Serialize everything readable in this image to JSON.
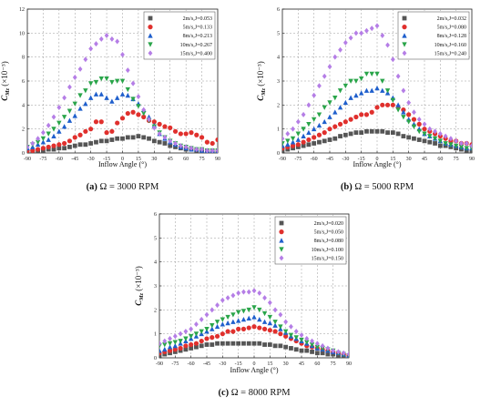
{
  "chart_data": [
    {
      "type": "scatter",
      "caption_letter": "(a)",
      "caption_text": "Ω = 3000 RPM",
      "xlabel": "Inflow Angle (°)",
      "ylabel": "C_Mz (×10⁻³)",
      "xlim": [
        -90,
        90
      ],
      "ylim": [
        0,
        12
      ],
      "xticks": [
        -90,
        -75,
        -60,
        -45,
        -30,
        -15,
        0,
        15,
        30,
        45,
        60,
        75,
        90
      ],
      "yticks": [
        0,
        2,
        4,
        6,
        8,
        10,
        12
      ],
      "grid": true,
      "legend": "top-right",
      "x": [
        -90,
        -85,
        -80,
        -75,
        -70,
        -65,
        -60,
        -55,
        -50,
        -45,
        -40,
        -35,
        -30,
        -25,
        -20,
        -15,
        -10,
        -5,
        0,
        5,
        10,
        15,
        20,
        25,
        30,
        35,
        40,
        45,
        50,
        55,
        60,
        65,
        70,
        75,
        80,
        85,
        90
      ],
      "series": [
        {
          "name": "2m/s,J=0.053",
          "marker": "square",
          "color": "#555555",
          "values": [
            0.1,
            0.1,
            0.2,
            0.2,
            0.3,
            0.3,
            0.4,
            0.4,
            0.5,
            0.6,
            0.7,
            0.7,
            0.8,
            0.9,
            1.0,
            1.0,
            1.1,
            1.2,
            1.2,
            1.3,
            1.3,
            1.4,
            1.3,
            1.2,
            1.0,
            0.9,
            0.8,
            0.6,
            0.5,
            0.4,
            0.3,
            0.3,
            0.2,
            0.2,
            0.1,
            0.1,
            0.1
          ]
        },
        {
          "name": "5m/s,J=0.133",
          "marker": "circle",
          "color": "#e0302d",
          "values": [
            0.2,
            0.2,
            0.3,
            0.4,
            0.5,
            0.6,
            0.7,
            0.8,
            1.0,
            1.3,
            1.5,
            1.8,
            2.0,
            2.6,
            2.6,
            1.7,
            1.8,
            2.5,
            2.9,
            3.3,
            3.4,
            3.2,
            3.0,
            2.7,
            2.6,
            2.4,
            2.2,
            2.1,
            1.8,
            1.6,
            1.6,
            1.7,
            1.5,
            1.3,
            0.9,
            0.8,
            1.1
          ]
        },
        {
          "name": "8m/s,J=0.213",
          "marker": "triangle-up",
          "color": "#1f5fcc",
          "values": [
            0.4,
            0.5,
            0.7,
            0.9,
            1.1,
            1.4,
            1.8,
            2.2,
            2.7,
            3.1,
            3.7,
            4.1,
            4.6,
            4.9,
            4.9,
            4.6,
            4.3,
            4.6,
            4.9,
            4.8,
            4.5,
            4.1,
            3.6,
            3.0,
            2.3,
            1.6,
            1.2,
            0.9,
            0.7,
            0.5,
            0.4,
            0.3,
            0.3,
            0.2,
            0.2,
            0.2,
            0.1
          ]
        },
        {
          "name": "10m/s,J=0.267",
          "marker": "triangle-down",
          "color": "#2aa54a",
          "values": [
            0.5,
            0.7,
            0.9,
            1.2,
            1.6,
            2.0,
            2.5,
            3.0,
            3.5,
            4.1,
            4.8,
            5.2,
            5.8,
            5.9,
            6.2,
            6.2,
            5.9,
            6.0,
            6.0,
            5.3,
            4.5,
            3.9,
            3.3,
            2.7,
            2.2,
            1.7,
            1.3,
            1.0,
            0.8,
            0.6,
            0.5,
            0.4,
            0.3,
            0.3,
            0.2,
            0.2,
            0.2
          ]
        },
        {
          "name": "15m/s,J=0.400",
          "marker": "diamond",
          "color": "#b57ee6",
          "values": [
            0.5,
            0.8,
            1.2,
            1.7,
            2.3,
            3.0,
            3.8,
            4.6,
            5.5,
            6.3,
            7.0,
            7.8,
            8.7,
            9.1,
            9.5,
            9.8,
            9.5,
            9.3,
            8.2,
            6.9,
            5.8,
            4.7,
            3.6,
            2.8,
            2.1,
            1.6,
            1.3,
            1.0,
            0.8,
            0.6,
            0.5,
            0.4,
            0.3,
            0.3,
            0.2,
            0.2,
            0.2
          ]
        }
      ]
    },
    {
      "type": "scatter",
      "caption_letter": "(b)",
      "caption_text": "Ω = 5000 RPM",
      "xlabel": "Inflow Angle (°)",
      "ylabel": "C_Mz (×10⁻³)",
      "xlim": [
        -90,
        90
      ],
      "ylim": [
        0,
        6
      ],
      "xticks": [
        -90,
        -75,
        -60,
        -45,
        -30,
        -15,
        0,
        15,
        30,
        45,
        60,
        75,
        90
      ],
      "yticks": [
        0,
        1,
        2,
        3,
        4,
        5,
        6
      ],
      "grid": true,
      "legend": "top-right",
      "x": [
        -90,
        -85,
        -80,
        -75,
        -70,
        -65,
        -60,
        -55,
        -50,
        -45,
        -40,
        -35,
        -30,
        -25,
        -20,
        -15,
        -10,
        -5,
        0,
        5,
        10,
        15,
        20,
        25,
        30,
        35,
        40,
        45,
        50,
        55,
        60,
        65,
        70,
        75,
        80,
        85,
        90
      ],
      "series": [
        {
          "name": "2m/s,J=0.032",
          "marker": "square",
          "color": "#555555",
          "values": [
            0.1,
            0.15,
            0.2,
            0.25,
            0.3,
            0.35,
            0.4,
            0.45,
            0.5,
            0.55,
            0.6,
            0.7,
            0.75,
            0.8,
            0.85,
            0.85,
            0.9,
            0.9,
            0.9,
            0.9,
            0.85,
            0.85,
            0.8,
            0.7,
            0.65,
            0.6,
            0.55,
            0.5,
            0.45,
            0.4,
            0.3,
            0.3,
            0.25,
            0.2,
            0.15,
            0.1,
            0.05
          ]
        },
        {
          "name": "5m/s,J=0.080",
          "marker": "circle",
          "color": "#e0302d",
          "values": [
            0.2,
            0.25,
            0.3,
            0.35,
            0.45,
            0.55,
            0.65,
            0.75,
            0.85,
            1.0,
            1.1,
            1.2,
            1.3,
            1.4,
            1.5,
            1.6,
            1.6,
            1.7,
            1.9,
            2.0,
            2.0,
            2.0,
            1.9,
            1.8,
            1.6,
            1.4,
            1.2,
            1.0,
            0.9,
            0.8,
            0.7,
            0.6,
            0.5,
            0.5,
            0.4,
            0.4,
            0.35
          ]
        },
        {
          "name": "8m/s,J=0.128",
          "marker": "triangle-up",
          "color": "#1f5fcc",
          "values": [
            0.3,
            0.35,
            0.45,
            0.55,
            0.7,
            0.85,
            1.0,
            1.15,
            1.3,
            1.5,
            1.7,
            1.9,
            2.1,
            2.3,
            2.4,
            2.5,
            2.6,
            2.6,
            2.7,
            2.6,
            2.5,
            2.3,
            2.0,
            1.7,
            1.4,
            1.2,
            1.0,
            0.8,
            0.7,
            0.6,
            0.5,
            0.4,
            0.35,
            0.3,
            0.25,
            0.2,
            0.2
          ]
        },
        {
          "name": "10m/s,J=0.160",
          "marker": "triangle-down",
          "color": "#2aa54a",
          "values": [
            0.4,
            0.5,
            0.6,
            0.8,
            1.0,
            1.2,
            1.4,
            1.6,
            1.9,
            2.1,
            2.3,
            2.6,
            2.8,
            3.0,
            3.0,
            3.1,
            3.3,
            3.3,
            3.3,
            3.0,
            2.6,
            2.2,
            1.8,
            1.5,
            1.3,
            1.1,
            0.9,
            0.8,
            0.7,
            0.6,
            0.5,
            0.4,
            0.35,
            0.3,
            0.25,
            0.2,
            0.2
          ]
        },
        {
          "name": "15m/s,J=0.240",
          "marker": "diamond",
          "color": "#b57ee6",
          "values": [
            0.6,
            0.8,
            1.0,
            1.3,
            1.6,
            2.0,
            2.4,
            2.8,
            3.2,
            3.6,
            4.0,
            4.3,
            4.6,
            4.8,
            5.0,
            5.0,
            5.1,
            5.2,
            5.3,
            4.9,
            4.5,
            3.9,
            3.2,
            2.6,
            2.1,
            1.7,
            1.4,
            1.2,
            1.0,
            0.9,
            0.8,
            0.7,
            0.6,
            0.5,
            0.4,
            0.4,
            0.3
          ]
        }
      ]
    },
    {
      "type": "scatter",
      "caption_letter": "(c)",
      "caption_text": "Ω = 8000 RPM",
      "xlabel": "Inflow Angle (°)",
      "ylabel": "C_Mz (×10⁻³)",
      "xlim": [
        -90,
        90
      ],
      "ylim": [
        0,
        6
      ],
      "xticks": [
        -90,
        -75,
        -60,
        -45,
        -30,
        -15,
        0,
        15,
        30,
        45,
        60,
        75,
        90
      ],
      "yticks": [
        0,
        1,
        2,
        3,
        4,
        5,
        6
      ],
      "grid": true,
      "legend": "top-right",
      "x": [
        -90,
        -85,
        -80,
        -75,
        -70,
        -65,
        -60,
        -55,
        -50,
        -45,
        -40,
        -35,
        -30,
        -25,
        -20,
        -15,
        -10,
        -5,
        0,
        5,
        10,
        15,
        20,
        25,
        30,
        35,
        40,
        45,
        50,
        55,
        60,
        65,
        70,
        75,
        80,
        85,
        90
      ],
      "series": [
        {
          "name": "2m/s,J=0.020",
          "marker": "square",
          "color": "#555555",
          "values": [
            0.1,
            0.15,
            0.2,
            0.25,
            0.3,
            0.35,
            0.4,
            0.45,
            0.5,
            0.55,
            0.55,
            0.6,
            0.6,
            0.6,
            0.6,
            0.6,
            0.6,
            0.6,
            0.6,
            0.6,
            0.55,
            0.55,
            0.5,
            0.5,
            0.45,
            0.4,
            0.35,
            0.3,
            0.3,
            0.25,
            0.2,
            0.2,
            0.15,
            0.15,
            0.1,
            0.1,
            0.05
          ]
        },
        {
          "name": "5m/s,J=0.050",
          "marker": "circle",
          "color": "#e0302d",
          "values": [
            0.2,
            0.25,
            0.3,
            0.35,
            0.4,
            0.5,
            0.55,
            0.6,
            0.7,
            0.8,
            0.85,
            0.9,
            1.0,
            1.1,
            1.1,
            1.2,
            1.2,
            1.25,
            1.3,
            1.25,
            1.2,
            1.15,
            1.1,
            1.0,
            0.9,
            0.8,
            0.7,
            0.6,
            0.5,
            0.45,
            0.4,
            0.35,
            0.3,
            0.25,
            0.2,
            0.15,
            0.1
          ]
        },
        {
          "name": "8m/s,J=0.080",
          "marker": "triangle-up",
          "color": "#1f5fcc",
          "values": [
            0.3,
            0.35,
            0.45,
            0.5,
            0.6,
            0.7,
            0.8,
            0.9,
            1.0,
            1.1,
            1.2,
            1.3,
            1.4,
            1.45,
            1.5,
            1.55,
            1.6,
            1.65,
            1.7,
            1.6,
            1.5,
            1.45,
            1.35,
            1.2,
            1.05,
            0.9,
            0.8,
            0.7,
            0.6,
            0.5,
            0.4,
            0.35,
            0.3,
            0.25,
            0.2,
            0.15,
            0.1
          ]
        },
        {
          "name": "10m/s,J=0.100",
          "marker": "triangle-down",
          "color": "#2aa54a",
          "values": [
            0.5,
            0.55,
            0.6,
            0.65,
            0.7,
            0.8,
            0.9,
            1.0,
            1.1,
            1.2,
            1.35,
            1.5,
            1.6,
            1.7,
            1.8,
            1.9,
            1.95,
            2.0,
            2.1,
            2.0,
            1.85,
            1.7,
            1.5,
            1.3,
            1.1,
            0.95,
            0.85,
            0.75,
            0.65,
            0.55,
            0.45,
            0.4,
            0.35,
            0.3,
            0.2,
            0.15,
            0.1
          ]
        },
        {
          "name": "15m/s,J=0.150",
          "marker": "diamond",
          "color": "#b57ee6",
          "values": [
            0.6,
            0.7,
            0.8,
            0.9,
            1.0,
            1.1,
            1.2,
            1.4,
            1.6,
            1.8,
            2.0,
            2.2,
            2.4,
            2.5,
            2.6,
            2.7,
            2.75,
            2.75,
            2.8,
            2.7,
            2.5,
            2.3,
            2.0,
            1.8,
            1.5,
            1.3,
            1.1,
            0.95,
            0.8,
            0.7,
            0.6,
            0.5,
            0.4,
            0.3,
            0.25,
            0.2,
            0.15
          ]
        }
      ]
    }
  ]
}
